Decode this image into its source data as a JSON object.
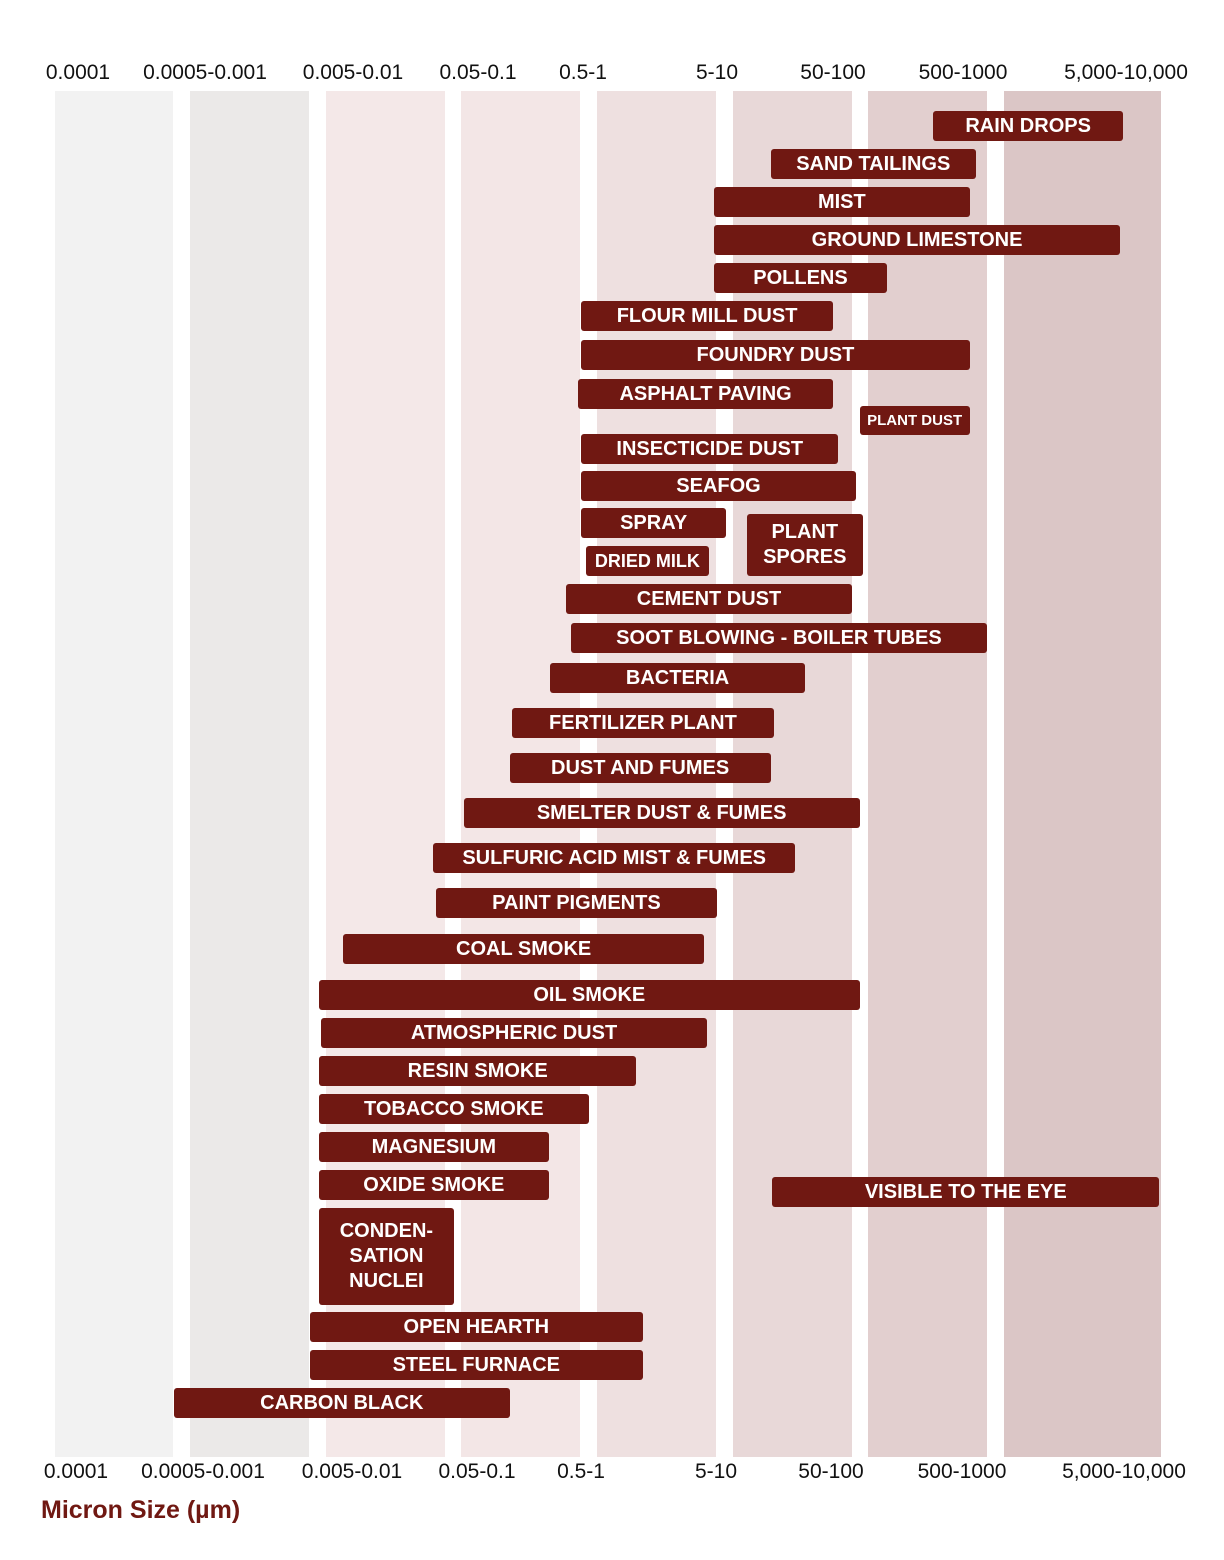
{
  "chart_data": {
    "type": "range-bar",
    "xlabel": "Micron Size (µm)",
    "x_scale": "log",
    "tick_labels": [
      "0.0001",
      "0.0005-0.001",
      "0.005-0.01",
      "0.05-0.1",
      "0.5-1",
      "5-10",
      "50-100",
      "500-1000",
      "5,000-10,000"
    ],
    "band_colors": [
      "#f2f2f2",
      "#ebe9e8",
      "#f4e8e8",
      "#f3e6e6",
      "#eee0e0",
      "#e8d8d8",
      "#e2cfcf",
      "#dbc6c6"
    ],
    "bar_color": "#701812",
    "bars": [
      {
        "label": "RAIN DROPS",
        "min": 590,
        "max": 9600
      },
      {
        "label": "SAND TAILINGS",
        "min": 29,
        "max": 1200
      },
      {
        "label": "MIST",
        "min": 9.5,
        "max": 1100
      },
      {
        "label": "GROUND LIMESTONE",
        "min": 9.5,
        "max": 9200
      },
      {
        "label": "POLLENS",
        "min": 9.5,
        "max": 260
      },
      {
        "label": "FLOUR MILL DUST",
        "min": 0.96,
        "max": 100
      },
      {
        "label": "FOUNDRY DUST",
        "min": 0.96,
        "max": 1100
      },
      {
        "label": "ASPHALT PAVING",
        "min": 0.9,
        "max": 100
      },
      {
        "label": "PLANT DUST",
        "min": 160,
        "max": 1100
      },
      {
        "label": "INSECTICIDE DUST",
        "min": 0.96,
        "max": 110
      },
      {
        "label": "SEAFOG",
        "min": 0.96,
        "max": 150
      },
      {
        "label": "SPRAY",
        "min": 0.96,
        "max": 12
      },
      {
        "label": "PLANT\nSPORES",
        "min": 18,
        "max": 170
      },
      {
        "label": "DRIED MILK",
        "min": 1.05,
        "max": 8.7
      },
      {
        "label": "CEMENT DUST",
        "min": 0.69,
        "max": 140
      },
      {
        "label": "SOOT BLOWING - BOILER TUBES",
        "min": 0.77,
        "max": 1400
      },
      {
        "label": "BACTERIA",
        "min": 0.49,
        "max": 57
      },
      {
        "label": "FERTILIZER PLANT",
        "min": 0.21,
        "max": 31
      },
      {
        "label": "DUST AND FUMES",
        "min": 0.2,
        "max": 29
      },
      {
        "label": "SMELTER DUST & FUMES",
        "min": 0.077,
        "max": 160
      },
      {
        "label": "SULFURIC ACID MIST & FUMES",
        "min": 0.044,
        "max": 47
      },
      {
        "label": "PAINT PIGMENTS",
        "min": 0.046,
        "max": 10
      },
      {
        "label": "COAL SMOKE",
        "min": 0.0086,
        "max": 8.0
      },
      {
        "label": "OIL SMOKE",
        "min": 0.0059,
        "max": 160
      },
      {
        "label": "ATMOSPHERIC DUST",
        "min": 0.0061,
        "max": 8.4
      },
      {
        "label": "RESIN SMOKE",
        "min": 0.0059,
        "max": 2.5
      },
      {
        "label": "TOBACCO SMOKE",
        "min": 0.0059,
        "max": 1.1
      },
      {
        "label": "MAGNESIUM",
        "min": 0.0059,
        "max": 0.47
      },
      {
        "label": "OXIDE SMOKE",
        "min": 0.0059,
        "max": 0.47
      },
      {
        "label": "VISIBLE TO THE EYE",
        "min": 30,
        "max": 16000
      },
      {
        "label": "CONDEN-\nSATION\nNUCLEI",
        "min": 0.0059,
        "max": 0.064
      },
      {
        "label": "OPEN HEARTH",
        "min": 0.0051,
        "max": 2.8
      },
      {
        "label": "STEEL FURNACE",
        "min": 0.0051,
        "max": 2.8
      },
      {
        "label": "CARBON BLACK",
        "min": 0.00057,
        "max": 0.2
      }
    ]
  }
}
